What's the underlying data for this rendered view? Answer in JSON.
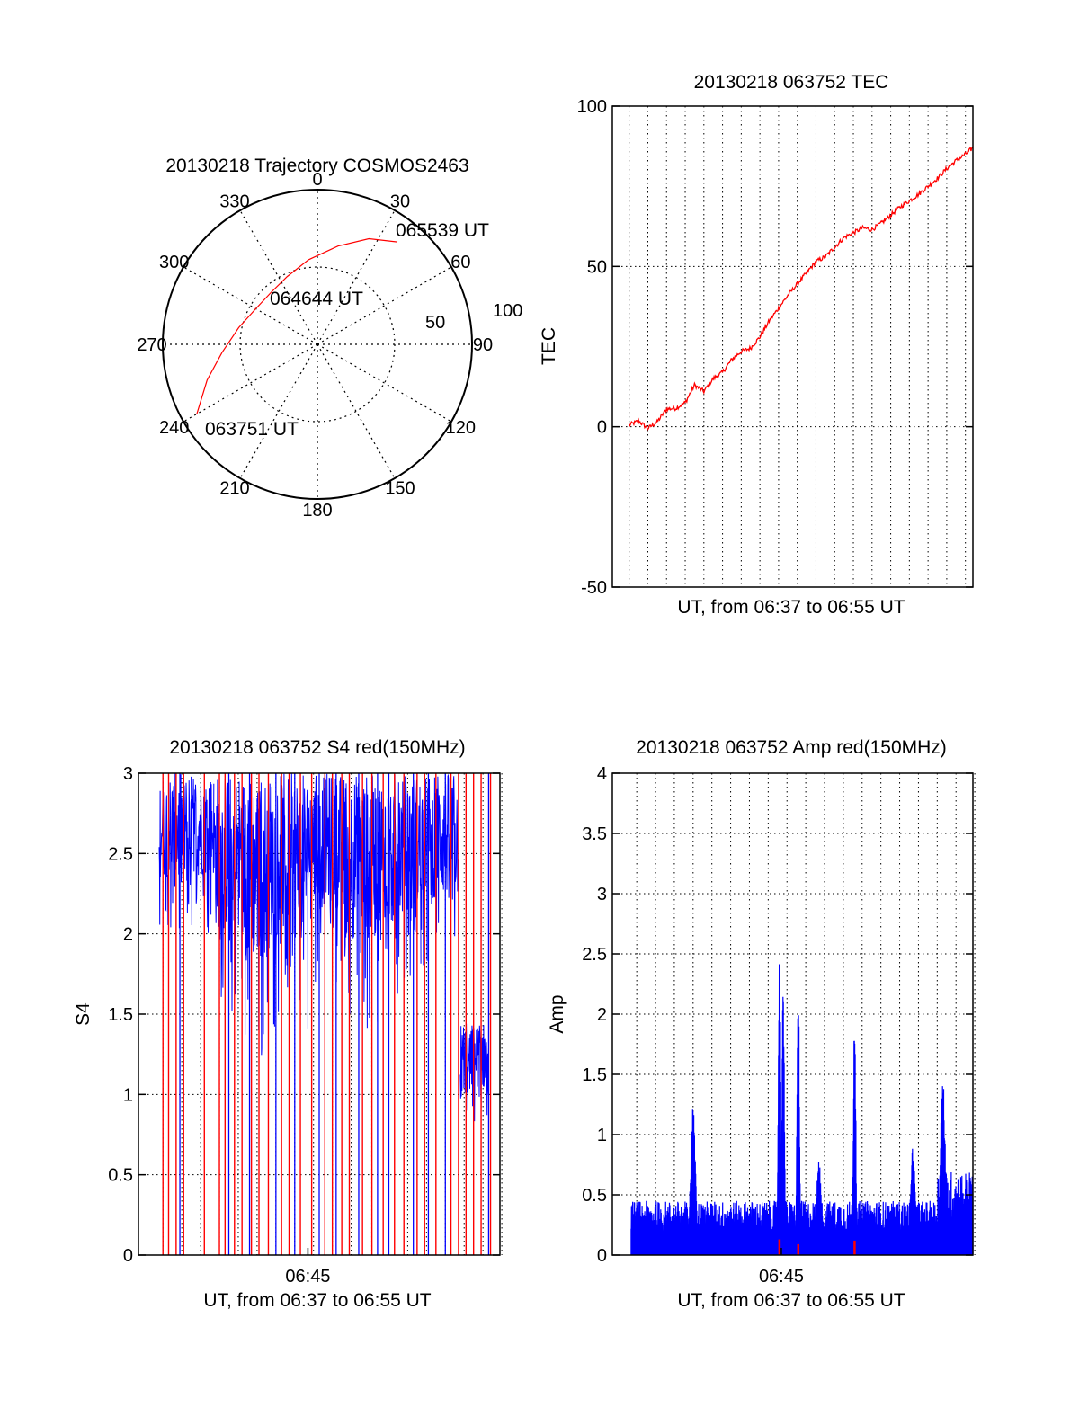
{
  "colors": {
    "red": "#ff0000",
    "blue": "#0000ff",
    "axis": "#000000",
    "grid": "#000000"
  },
  "chart_data": [
    {
      "id": "trajectory",
      "type": "polar",
      "title": "20130218 Trajectory COSMOS2463",
      "angle_ticks": [
        "0",
        "30",
        "60",
        "90",
        "120",
        "150",
        "180",
        "210",
        "240",
        "270",
        "300",
        "330"
      ],
      "radial_ticks": [
        "50",
        "100"
      ],
      "radial_range": [
        0,
        100
      ],
      "grid": true,
      "series": [
        {
          "color": "#ff0000",
          "points": [
            [
              240,
              90
            ],
            [
              252,
              75
            ],
            [
              265,
              62
            ],
            [
              282,
              52
            ],
            [
              300,
              46
            ],
            [
              318,
              45
            ],
            [
              336,
              48
            ],
            [
              354,
              55
            ],
            [
              12,
              65
            ],
            [
              26,
              76
            ],
            [
              38,
              84
            ]
          ]
        }
      ],
      "annotations": [
        {
          "text": "065539 UT",
          "angle": 38,
          "r": 84
        },
        {
          "text": "064644 UT",
          "angle": 318,
          "r": 45
        },
        {
          "text": "063751 UT",
          "angle": 240,
          "r": 90
        }
      ]
    },
    {
      "id": "tec",
      "type": "line",
      "title": "20130218 063752 TEC",
      "xlabel": "UT, from 06:37 to 06:55 UT",
      "ylabel": "TEC",
      "ylim": [
        -50,
        100
      ],
      "yticks": [
        "-50",
        "0",
        "50",
        "100"
      ],
      "xrange_min": [
        37.5,
        55.9
      ],
      "grid": true,
      "series": [
        {
          "color": "#ff0000",
          "points": [
            [
              37.5,
              0.5
            ],
            [
              38.0,
              1.8
            ],
            [
              38.5,
              -0.5
            ],
            [
              39.0,
              1.5
            ],
            [
              39.5,
              5.5
            ],
            [
              40.0,
              5.8
            ],
            [
              40.5,
              7.5
            ],
            [
              41.0,
              13.0
            ],
            [
              41.5,
              11.0
            ],
            [
              42.0,
              15.0
            ],
            [
              42.5,
              17.0
            ],
            [
              43.0,
              21.0
            ],
            [
              43.5,
              23.5
            ],
            [
              44.0,
              24.5
            ],
            [
              44.5,
              28.0
            ],
            [
              45.0,
              33.0
            ],
            [
              45.5,
              37.0
            ],
            [
              46.0,
              41.0
            ],
            [
              46.5,
              44.5
            ],
            [
              47.0,
              48.0
            ],
            [
              47.5,
              51.5
            ],
            [
              48.0,
              53.0
            ],
            [
              48.5,
              56.0
            ],
            [
              49.0,
              59.0
            ],
            [
              49.5,
              60.5
            ],
            [
              50.0,
              62.0
            ],
            [
              50.5,
              61.5
            ],
            [
              51.0,
              63.5
            ],
            [
              51.5,
              66.0
            ],
            [
              52.0,
              68.5
            ],
            [
              52.5,
              70.5
            ],
            [
              53.0,
              72.5
            ],
            [
              53.5,
              75.0
            ],
            [
              54.0,
              77.5
            ],
            [
              54.5,
              80.5
            ],
            [
              55.0,
              83.0
            ],
            [
              55.5,
              85.0
            ],
            [
              55.9,
              87.0
            ]
          ]
        }
      ]
    },
    {
      "id": "s4",
      "type": "line",
      "title": "20130218 063752 S4 red(150MHz)",
      "xlabel": "UT, from 06:37 to 06:55 UT",
      "ylabel": "S4",
      "ylim": [
        0,
        3
      ],
      "yticks": [
        "0",
        "0.5",
        "1",
        "1.5",
        "2",
        "2.5",
        "3"
      ],
      "xtick_labels": [
        {
          "x": 45,
          "label": "06:45"
        }
      ],
      "xrange_min": [
        37.0,
        55.0
      ],
      "grid": true,
      "series": [
        {
          "color": "#0000ff",
          "segments": [
            [
              37.1,
              37.7,
              2.0,
              3.0
            ],
            [
              37.7,
              38.8,
              1.9,
              3.0
            ],
            [
              38.8,
              40.0,
              2.0,
              3.0
            ],
            [
              40.0,
              41.6,
              1.5,
              3.0
            ],
            [
              41.6,
              43.0,
              1.2,
              3.0
            ],
            [
              43.0,
              45.0,
              1.4,
              3.0
            ],
            [
              45.0,
              47.0,
              1.7,
              3.0
            ],
            [
              47.0,
              49.0,
              1.4,
              3.0
            ],
            [
              49.0,
              51.0,
              1.6,
              3.0
            ],
            [
              51.0,
              53.0,
              1.8,
              3.0
            ],
            [
              53.1,
              54.6,
              0.8,
              1.45
            ]
          ],
          "dropouts": [
            38.2,
            40.8,
            41.9,
            43.3,
            44.3,
            45.6,
            46.5,
            47.7,
            48.7,
            49.3,
            50.6,
            51.4,
            52.3,
            54.6
          ]
        },
        {
          "color": "#ff0000",
          "spikes": [
            37.3,
            37.6,
            38.0,
            38.4,
            39.5,
            40.3,
            40.6,
            41.1,
            41.5,
            42.0,
            42.4,
            42.9,
            43.6,
            44.0,
            44.6,
            45.2,
            45.9,
            46.3,
            46.8,
            47.2,
            47.9,
            48.4,
            49.0,
            49.6,
            50.1,
            50.8,
            51.2,
            51.8,
            52.6,
            53.0,
            53.4,
            53.8,
            54.2,
            54.7
          ]
        }
      ]
    },
    {
      "id": "amp",
      "type": "line",
      "title": "20130218 063752 Amp red(150MHz)",
      "xlabel": "UT, from 06:37 to 06:55 UT",
      "ylabel": "Amp",
      "ylim": [
        0,
        4
      ],
      "yticks": [
        "0",
        "0.5",
        "1",
        "1.5",
        "2",
        "2.5",
        "3",
        "3.5",
        "4"
      ],
      "xtick_labels": [
        {
          "x": 45,
          "label": "06:45"
        }
      ],
      "xrange_min": [
        37.0,
        55.0
      ],
      "grid": true,
      "series": [
        {
          "color": "#0000ff",
          "base_range": [
            0.0,
            0.45
          ],
          "peaks": [
            [
              40.3,
              1.25
            ],
            [
              44.9,
              2.55
            ],
            [
              45.1,
              2.3
            ],
            [
              45.9,
              2.3
            ],
            [
              47.0,
              0.8
            ],
            [
              48.9,
              2.1
            ],
            [
              52.0,
              0.9
            ],
            [
              53.6,
              1.5
            ]
          ]
        },
        {
          "color": "#ff0000",
          "spikes": [
            [
              44.9,
              0.13
            ],
            [
              45.9,
              0.09
            ],
            [
              48.9,
              0.12
            ]
          ]
        }
      ]
    }
  ]
}
